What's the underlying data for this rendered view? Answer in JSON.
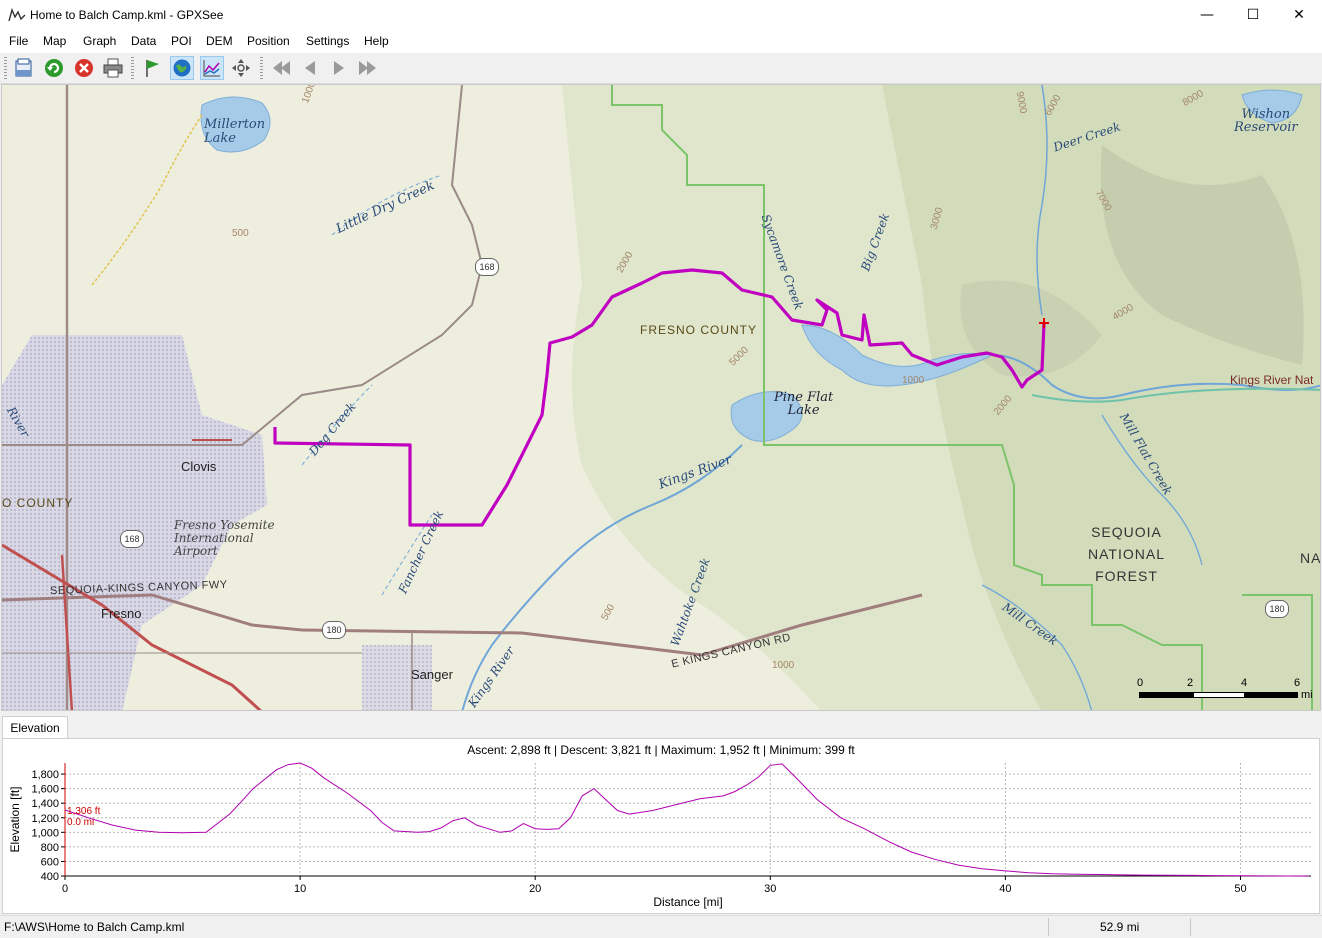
{
  "window": {
    "title": "Home to Balch Camp.kml - GPXSee",
    "minimize_glyph": "—",
    "maximize_glyph": "☐",
    "close_glyph": "✕"
  },
  "menu": {
    "items": [
      "File",
      "Map",
      "Graph",
      "Data",
      "POI",
      "DEM",
      "Position",
      "Settings",
      "Help"
    ]
  },
  "toolbar": {
    "buttons": [
      "open-file-icon",
      "reload-icon",
      "close-file-icon",
      "print-icon",
      "show-waypoints-icon",
      "show-map-icon",
      "show-graphs-icon",
      "center-map-icon",
      "first-file-icon",
      "previous-file-icon",
      "next-file-icon",
      "last-file-icon"
    ]
  },
  "map": {
    "labels": {
      "millerton": "Millerton\nLake",
      "little_dry_creek": "Little Dry Creek",
      "sycamore_creek": "Sycamore Creek",
      "big_creek": "Big Creek",
      "deer_creek": "Deer Creek",
      "wishon": "Wishon\nReservoir",
      "fresno_county": "FRESNO COUNTY",
      "fresno_county_left": "O COUNTY",
      "pine_flat": "Pine Flat\nLake",
      "kings_river_nat": "Kings River Nat",
      "mill_flat_creek": "Mill Flat Creek",
      "kings_river_mid": "Kings River",
      "dog_creek": "Dog Creek",
      "clovis": "Clovis",
      "airport": "Fresno Yosemite\nInternational\nAirport",
      "fancher_creek": "Fancher Creek",
      "wahtoke_creek": "Wahtoke Creek",
      "sequoia_nf": "SEQUOIA\nNATIONAL\nFOREST",
      "sequoia_kings_fwy": "SEQUOIA-KINGS CANYON FWY",
      "fresno": "Fresno",
      "e_kings_canyon_rd": "E KINGS CANYON RD",
      "mill_creek": "Mill Creek",
      "sanger": "Sanger",
      "kings_river_low": "Kings River",
      "river_left": "River",
      "nat_right": "NA"
    },
    "shields": [
      "168",
      "168",
      "180",
      "180"
    ],
    "contours": [
      "1000",
      "500",
      "2000",
      "3000",
      "5000",
      "6000",
      "7000",
      "8000",
      "9000",
      "4000",
      "1000",
      "2000",
      "1000",
      "500"
    ],
    "scale": {
      "ticks": [
        "0",
        "2",
        "4",
        "6"
      ],
      "unit": "mi"
    }
  },
  "graph": {
    "tab_label": "Elevation",
    "summary": "Ascent: 2,898 ft | Descent: 3,821 ft | Maximum: 1,952 ft | Minimum: 399 ft",
    "marker_elevation": "1,306 ft",
    "marker_distance": "0.0 mi",
    "chart_data": {
      "type": "line",
      "title": "",
      "xlabel": "Distance [mi]",
      "ylabel": "Elevation [ft]",
      "xlim": [
        0,
        53
      ],
      "ylim": [
        400,
        1952
      ],
      "x_ticks": [
        "0",
        "10",
        "20",
        "30",
        "40",
        "50"
      ],
      "y_ticks": [
        "400",
        "600",
        "800",
        "1,000",
        "1,200",
        "1,400",
        "1,600",
        "1,800"
      ],
      "grid": true,
      "series": [
        {
          "color": "#b000b0",
          "x": [
            0,
            1,
            2,
            3,
            4,
            5,
            6,
            7,
            7.5,
            8,
            9,
            9.5,
            10,
            10.5,
            11,
            12,
            13,
            13.5,
            14,
            15,
            15.5,
            16,
            16.5,
            17,
            17.5,
            18,
            18.5,
            19,
            19.5,
            20,
            20.5,
            21,
            21.5,
            22,
            22.5,
            23,
            23.5,
            24,
            25,
            26,
            27,
            28,
            28.5,
            29,
            29.5,
            30,
            30.5,
            31,
            32,
            33,
            34,
            35,
            36,
            37,
            38,
            39,
            40,
            41,
            42,
            43,
            44,
            45,
            46,
            47,
            48,
            49,
            50,
            51,
            52,
            52.9
          ],
          "y": [
            1306,
            1200,
            1100,
            1030,
            1000,
            995,
            1000,
            1250,
            1420,
            1600,
            1860,
            1930,
            1952,
            1880,
            1750,
            1540,
            1300,
            1130,
            1020,
            1000,
            1010,
            1060,
            1160,
            1200,
            1100,
            1050,
            1000,
            1020,
            1120,
            1050,
            1040,
            1050,
            1200,
            1500,
            1600,
            1450,
            1300,
            1250,
            1300,
            1380,
            1460,
            1500,
            1560,
            1650,
            1760,
            1920,
            1940,
            1780,
            1450,
            1200,
            1050,
            880,
            730,
            630,
            550,
            500,
            470,
            445,
            430,
            425,
            420,
            415,
            412,
            410,
            408,
            405,
            403,
            401,
            400,
            399
          ]
        }
      ]
    }
  },
  "status": {
    "path": "F:\\AWS\\Home to Balch Camp.kml",
    "distance": "52.9 mi"
  }
}
